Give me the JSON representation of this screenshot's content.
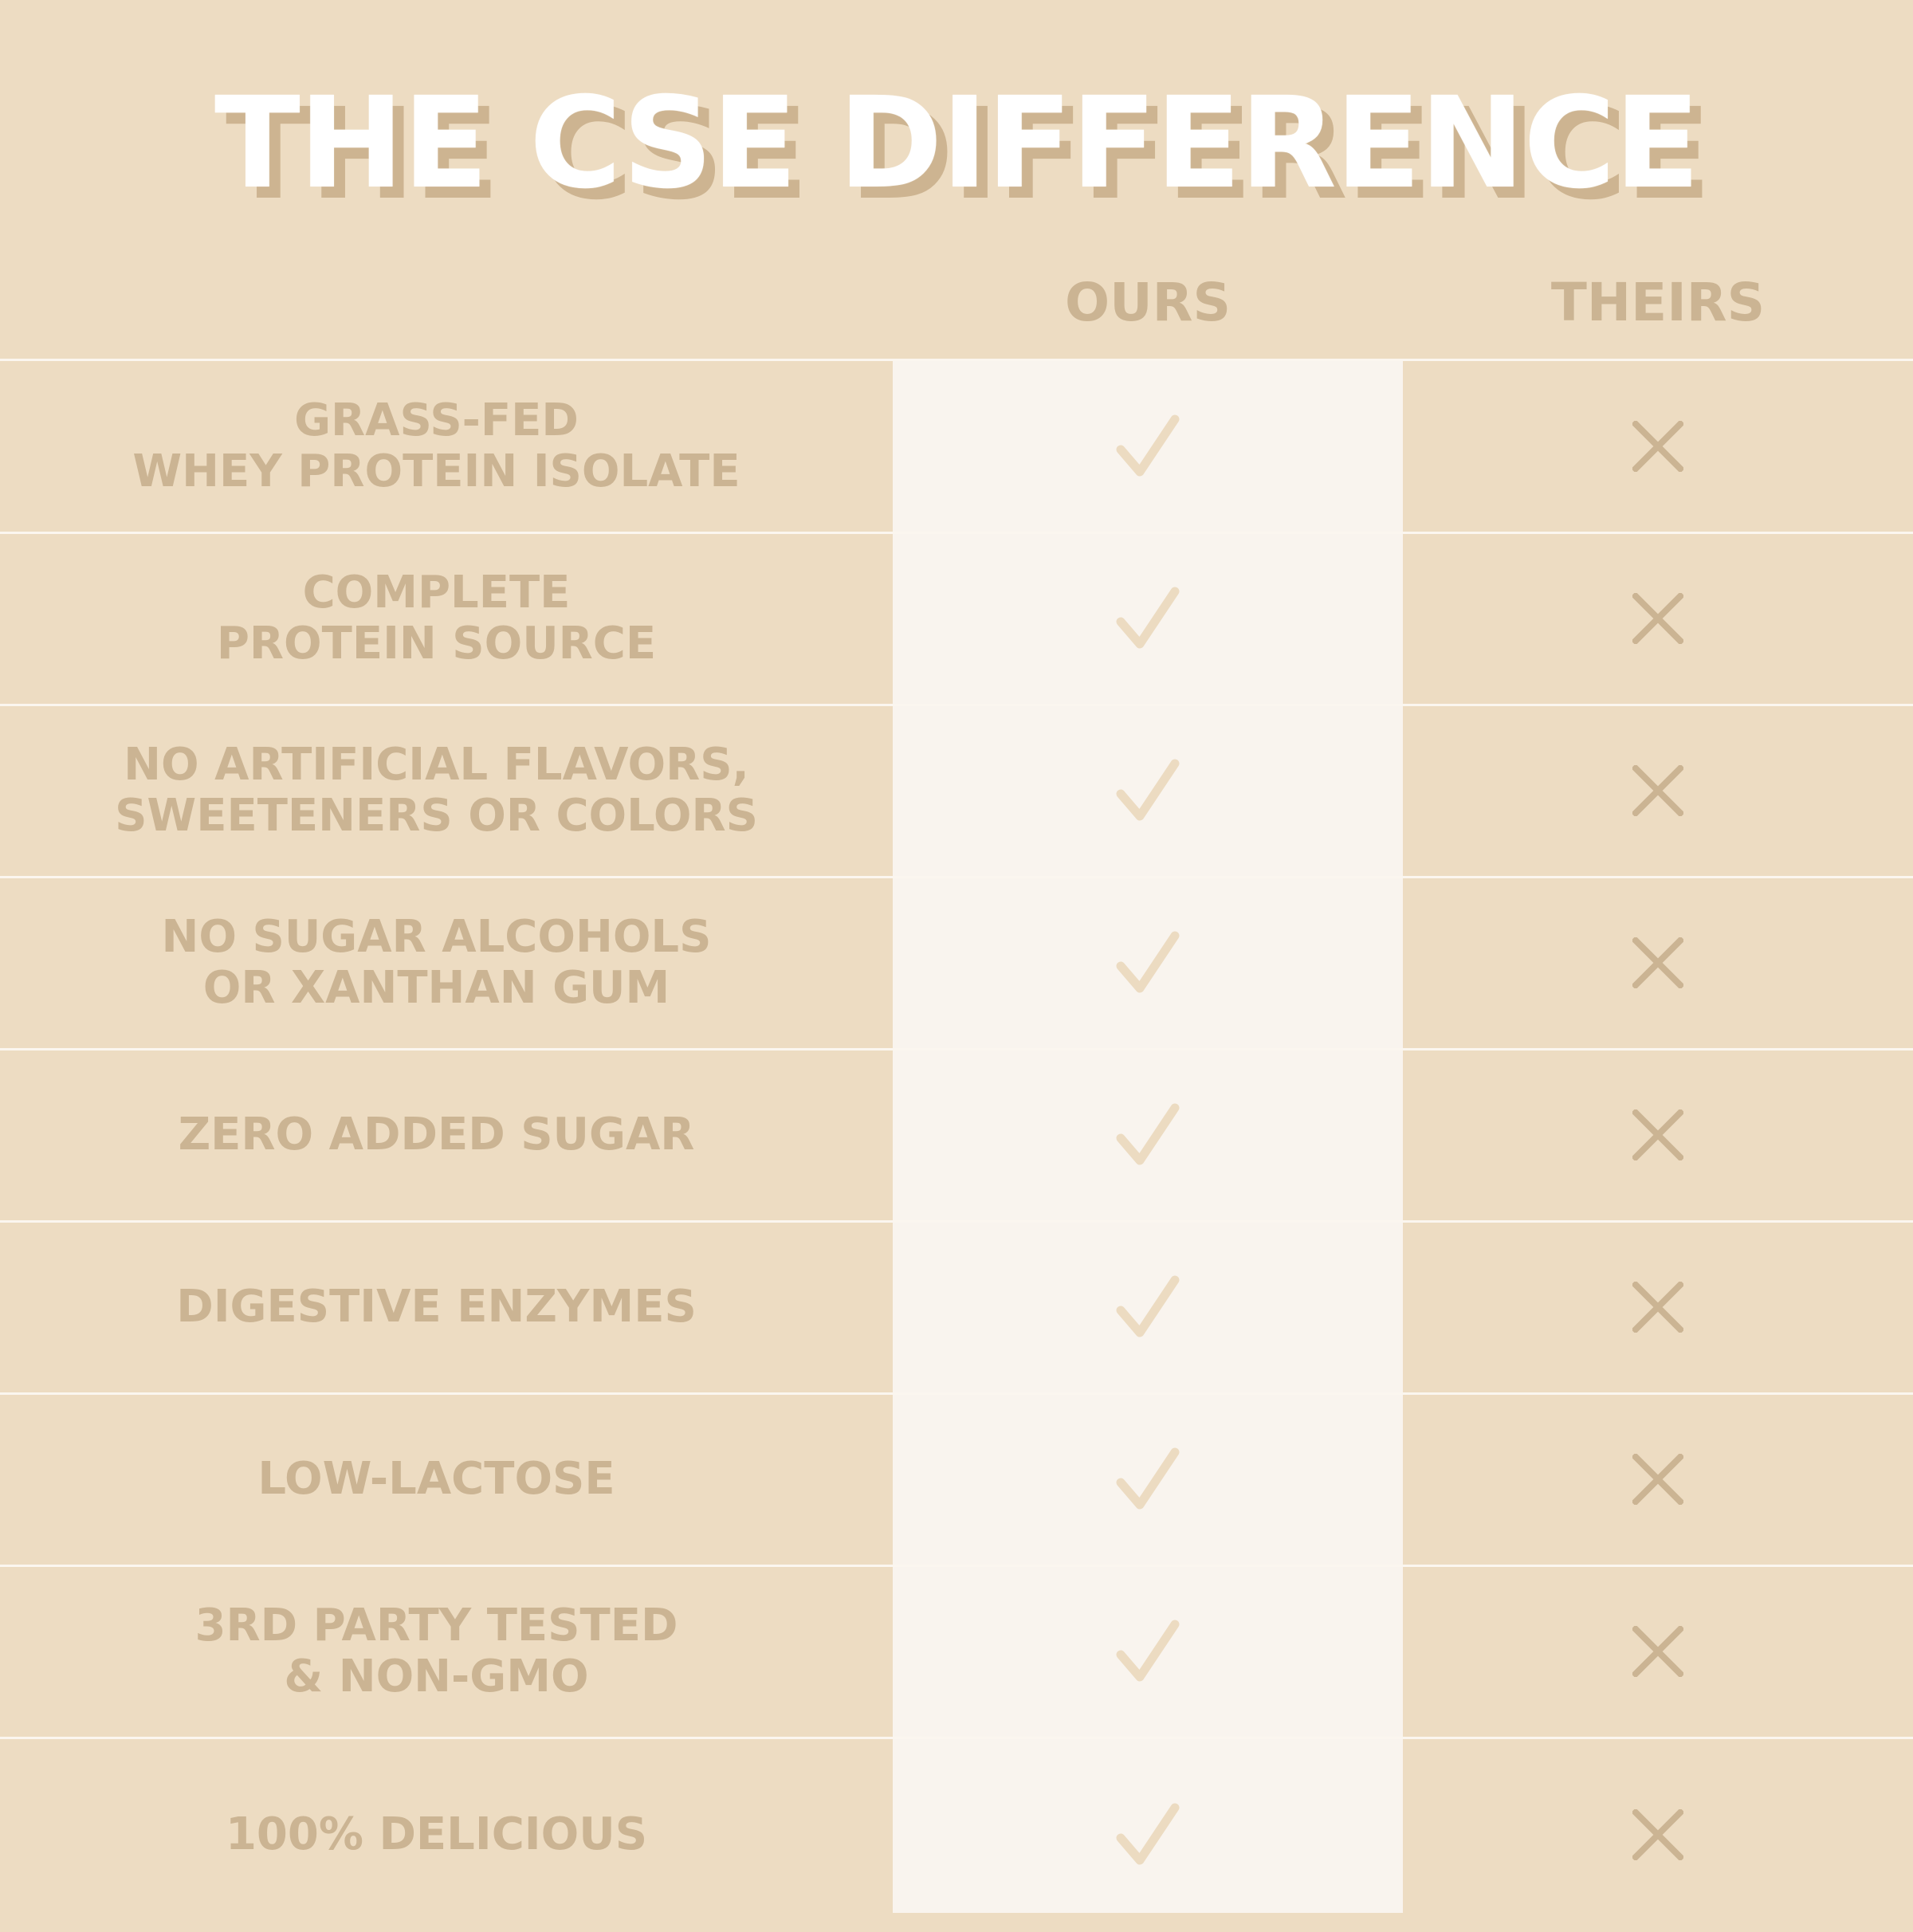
{
  "title": "THE CSE DIFFERENCE",
  "columns": {
    "ours": "OURS",
    "theirs": "THEIRS"
  },
  "colors": {
    "background": "#eddcc2",
    "ours_column": "#f9f4ee",
    "text": "#cbb493",
    "check": "#ecdbc1",
    "cross": "#cbb493",
    "title": "#ffffff",
    "title_shadow": "#cdb491"
  },
  "rows": [
    {
      "label": "GRASS-FED\nWHEY PROTEIN ISOLATE",
      "ours": "check-icon",
      "theirs": "cross-icon"
    },
    {
      "label": "COMPLETE\nPROTEIN SOURCE",
      "ours": "check-icon",
      "theirs": "cross-icon"
    },
    {
      "label": "NO ARTIFICIAL FLAVORS,\nSWEETENERS OR COLORS",
      "ours": "check-icon",
      "theirs": "cross-icon"
    },
    {
      "label": "NO SUGAR ALCOHOLS\nOR XANTHAN GUM",
      "ours": "check-icon",
      "theirs": "cross-icon"
    },
    {
      "label": "ZERO ADDED SUGAR",
      "ours": "check-icon",
      "theirs": "cross-icon"
    },
    {
      "label": "DIGESTIVE ENZYMES",
      "ours": "check-icon",
      "theirs": "cross-icon"
    },
    {
      "label": "LOW-LACTOSE",
      "ours": "check-icon",
      "theirs": "cross-icon"
    },
    {
      "label": "3RD PARTY TESTED\n& NON-GMO",
      "ours": "check-icon",
      "theirs": "cross-icon"
    },
    {
      "label": "100% DELICIOUS",
      "ours": "check-icon",
      "theirs": "cross-icon"
    }
  ]
}
